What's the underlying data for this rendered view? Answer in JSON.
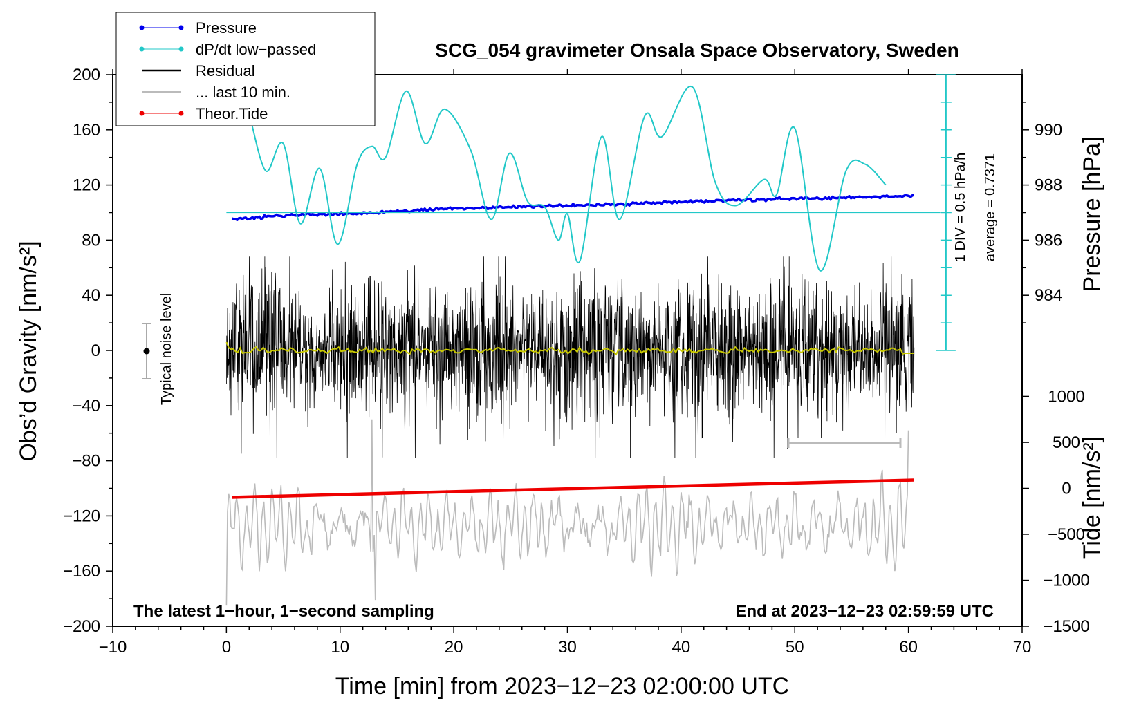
{
  "chart_data": {
    "type": "line",
    "title": "SCG_054 gravimeter Onsala Space Observatory, Sweden",
    "xlabel": "Time [min] from 2023−12−23 02:00:00 UTC",
    "ylabel_left": "Obs’d Gravity [nm/s²]",
    "ylabel_pressure": "Pressure [hPa]",
    "ylabel_tide": "Tide [nm/s²]",
    "xlim": [
      -10,
      70
    ],
    "ylim": [
      -200,
      200
    ],
    "x_ticks": [
      -10,
      0,
      10,
      20,
      30,
      40,
      50,
      60,
      70
    ],
    "x_tick_labels": [
      "−10",
      "0",
      "10",
      "20",
      "30",
      "40",
      "50",
      "60",
      "70"
    ],
    "y_ticks": [
      200,
      160,
      120,
      80,
      40,
      0,
      -40,
      -80,
      -120,
      -160,
      -200
    ],
    "y_tick_labels": [
      "200",
      "160",
      "120",
      "80",
      "40",
      "0",
      "−40",
      "−80",
      "−120",
      "−160",
      "−200"
    ],
    "pressure_axis": {
      "ticks_hpa": [
        990,
        988,
        986,
        984
      ],
      "tick_labels": [
        "990",
        "988",
        "986",
        "984"
      ],
      "gravity_equiv": [
        160,
        120,
        80,
        40
      ]
    },
    "tide_axis": {
      "ticks_nm": [
        1000,
        500,
        0,
        -500,
        -1000,
        -1500
      ],
      "tick_labels": [
        "1000",
        "500",
        "0",
        "−500",
        "−1000",
        "−1500"
      ],
      "gravity_equiv": [
        -33.3,
        -66.7,
        -100,
        -133.3,
        -166.7,
        -200
      ]
    },
    "legend": [
      {
        "label": "Pressure",
        "color": "#0000ee",
        "marker": true
      },
      {
        "label": "dP/dt low−passed",
        "color": "#22c8c8",
        "marker": true
      },
      {
        "label": "Residual",
        "color": "#000000",
        "marker": false
      },
      {
        "label": "... last 10 min.",
        "color": "#bbbbbb",
        "marker": false
      },
      {
        "label": "Theor.Tide",
        "color": "#ee0000",
        "marker": true
      }
    ],
    "series": [
      {
        "name": "Pressure",
        "color": "#0000ee",
        "x": [
          0.5,
          5,
          10,
          15,
          20,
          25,
          30,
          35,
          40,
          45,
          50,
          55,
          60.5
        ],
        "y": [
          95,
          98,
          99,
          101,
          103,
          104,
          105,
          106,
          108,
          109,
          110,
          111,
          112
        ]
      },
      {
        "name": "dP/dt low−passed",
        "color": "#22c8c8",
        "x": [
          2.2,
          3.5,
          5,
          6.5,
          8.2,
          9.8,
          11.5,
          12.8,
          14,
          15.8,
          17.5,
          19.2,
          21.5,
          23.3,
          24.9,
          26.5,
          28,
          29.2,
          30,
          31.1,
          33,
          34.6,
          36.8,
          38.3,
          41,
          43,
          44.8,
          47.3,
          48.4,
          50,
          52.2,
          54.5,
          56.2,
          58
        ],
        "y": [
          165,
          130,
          150,
          92,
          132,
          77,
          135,
          148,
          140,
          188,
          150,
          175,
          145,
          95,
          143,
          108,
          104,
          80,
          99,
          65,
          155,
          95,
          170,
          155,
          191,
          122,
          105,
          124,
          113,
          161,
          58,
          130,
          135,
          120
        ]
      },
      {
        "name": "dP/dt baseline",
        "color": "#22c8c8",
        "x": [
          0,
          62.8
        ],
        "y": [
          100,
          100
        ]
      },
      {
        "name": "Theor.Tide",
        "color": "#ee0000",
        "x": [
          0.5,
          60.5
        ],
        "y": [
          -106.5,
          -94
        ]
      },
      {
        "name": "Residual mean",
        "color": "#c8c800",
        "x": [
          0,
          60.5
        ],
        "y": [
          0,
          0
        ]
      }
    ],
    "annotations": {
      "scale_bar": "1 DIV = 0.5 hPa/h",
      "average": "average = 0.7371",
      "noise_label": "Typical noise level",
      "bottom_left": "The latest 1−hour, 1−second sampling",
      "bottom_right": "End at 2023−12−23 02:59:59 UTC"
    }
  }
}
